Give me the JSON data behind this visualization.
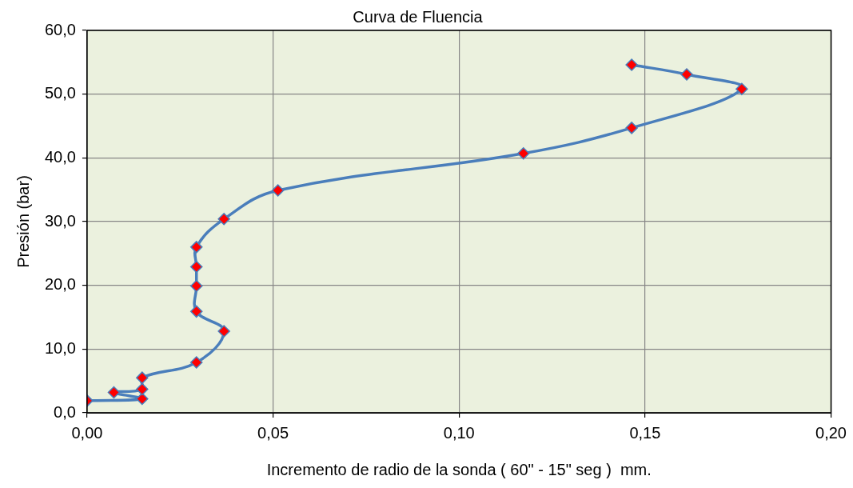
{
  "chart_data": {
    "type": "line",
    "title": "Curva de Fluencia",
    "xlabel": "Incremento de radio de la sonda ( 60\" - 15\" seg )  mm.",
    "ylabel": "Presión (bar)",
    "x": [
      0,
      0.0148,
      0.0072,
      0.0148,
      0.0148,
      0.0294,
      0.0368,
      0.0294,
      0.0294,
      0.0294,
      0.0294,
      0.0368,
      0.0513,
      0.1173,
      0.1464,
      0.176,
      0.1612,
      0.1464
    ],
    "series": [
      {
        "color": "#4a7ebb",
        "values": [
          1.9,
          2.2,
          3.2,
          3.7,
          5.5,
          7.9,
          12.8,
          15.9,
          19.9,
          22.9,
          26.0,
          30.4,
          34.9,
          40.7,
          44.7,
          50.8,
          53.1,
          54.6
        ]
      }
    ],
    "xlim": [
      0,
      0.2
    ],
    "xticks": [
      {
        "value": 0,
        "label": "0,00"
      },
      {
        "value": 0.05,
        "label": "0,05"
      },
      {
        "value": 0.1,
        "label": "0,10"
      },
      {
        "value": 0.15,
        "label": "0,15"
      },
      {
        "value": 0.2,
        "label": "0,20"
      }
    ],
    "ylim": [
      0,
      60
    ],
    "yticks": [
      {
        "value": 0,
        "label": "0,0"
      },
      {
        "value": 10,
        "label": "10,0"
      },
      {
        "value": 20,
        "label": "20,0"
      },
      {
        "value": 30,
        "label": "30,0"
      },
      {
        "value": 40,
        "label": "40,0"
      },
      {
        "value": 50,
        "label": "50,0"
      },
      {
        "value": 60,
        "label": "60,0"
      }
    ],
    "grid": true,
    "legend": false,
    "marker": "diamond",
    "line_style": "solid"
  }
}
